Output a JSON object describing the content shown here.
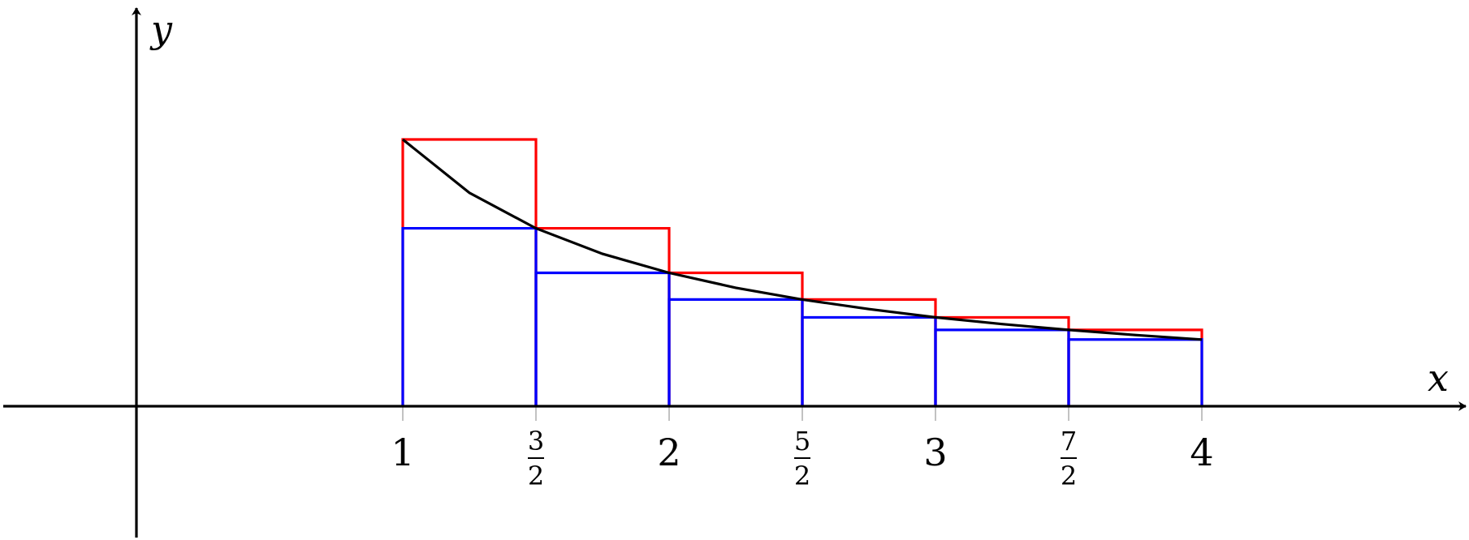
{
  "chart_data": {
    "type": "line",
    "title": "",
    "xlabel": "x",
    "ylabel": "y",
    "xlim": [
      -1,
      8
    ],
    "ylim": [
      -1,
      1.5
    ],
    "grid": false,
    "legend": "none",
    "x_ticks": [
      {
        "value": 1,
        "label": "1"
      },
      {
        "value": 1.5,
        "num": "3",
        "den": "2"
      },
      {
        "value": 2,
        "label": "2"
      },
      {
        "value": 2.5,
        "num": "5",
        "den": "2"
      },
      {
        "value": 3,
        "label": "3"
      },
      {
        "value": 3.5,
        "num": "7",
        "den": "2"
      },
      {
        "value": 4,
        "label": "4"
      }
    ],
    "curve": {
      "x": [
        1,
        1.25,
        1.5,
        1.75,
        2,
        2.25,
        2.5,
        2.75,
        3,
        3.25,
        3.5,
        3.75,
        4
      ],
      "y": [
        1,
        0.8,
        0.667,
        0.571,
        0.5,
        0.444,
        0.4,
        0.364,
        0.333,
        0.308,
        0.286,
        0.267,
        0.25
      ],
      "color": "#000000"
    },
    "series": [
      {
        "type": "bar",
        "color": "#ff0000",
        "x_left": [
          1,
          1.5,
          2,
          2.5,
          3,
          3.5
        ],
        "width": 0.5,
        "values": [
          1,
          0.667,
          0.5,
          0.4,
          0.333,
          0.286
        ]
      },
      {
        "type": "bar",
        "color": "#0000ff",
        "x_left": [
          1,
          1.5,
          2,
          2.5,
          3,
          3.5
        ],
        "width": 0.5,
        "values": [
          0.667,
          0.5,
          0.4,
          0.333,
          0.286,
          0.25
        ]
      }
    ]
  }
}
